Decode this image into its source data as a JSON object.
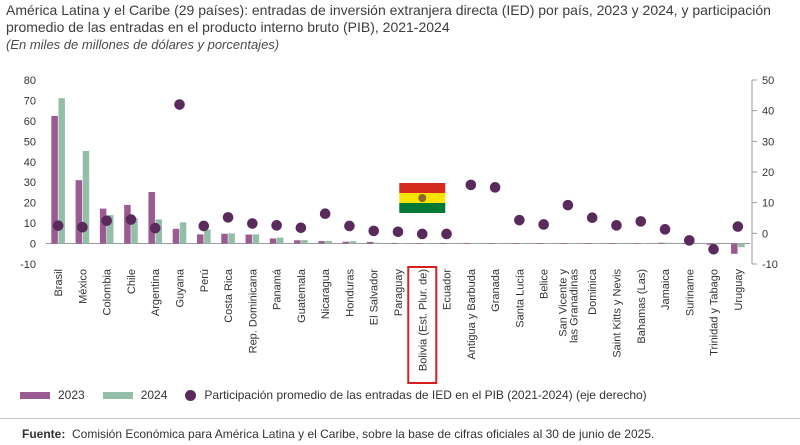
{
  "title": "América Latina y el Caribe (29 países): entradas de inversión extranjera directa (IED) por país, 2023 y 2024, y participación promedio de las entradas en el producto interno bruto (PIB), 2021-2024",
  "subtitle": "(En miles de millones de dólares y porcentajes)",
  "source_label": "Fuente:",
  "source_text": "Comisión Económica para América Latina y el Caribe, sobre la base de cifras oficiales al 30 de junio de 2025.",
  "highlight": {
    "category": "Bolivia (Est. Plur. de)",
    "flag_colors": [
      "#d52b1e",
      "#f9e300",
      "#007934"
    ]
  },
  "chart_data": {
    "type": "bar",
    "categories": [
      "Brasil",
      "México",
      "Colombia",
      "Chile",
      "Argentina",
      "Guyana",
      "Perú",
      "Costa Rica",
      "Rep. Dominicana",
      "Panamá",
      "Guatemala",
      "Nicaragua",
      "Honduras",
      "El Salvador",
      "Paraguay",
      "Bolivia (Est. Plur. de)",
      "Ecuador",
      "Antigua y Barbuda",
      "Granada",
      "Santa Lucía",
      "Belice",
      "San Vicente y las Granadinas",
      "Dominica",
      "Saint Kitts y Nevis",
      "Bahamas (Las)",
      "Jamaica",
      "Suriname",
      "Trinidad y Tabago",
      "Uruguay"
    ],
    "series": [
      {
        "name": "2023",
        "axis": "left",
        "color": "#9b5a92",
        "values": [
          62.4,
          31.0,
          17.1,
          18.9,
          25.2,
          7.2,
          4.5,
          4.8,
          4.4,
          2.5,
          1.6,
          1.2,
          0.9,
          0.8,
          0.3,
          0.1,
          0.3,
          0.3,
          0.2,
          0.2,
          0.1,
          0.1,
          0.1,
          0.1,
          0.2,
          0.4,
          0.1,
          -0.6,
          -5.0
        ]
      },
      {
        "name": "2024",
        "axis": "left",
        "color": "#93bfa8",
        "values": [
          71.1,
          45.3,
          13.9,
          12.4,
          11.8,
          10.4,
          6.8,
          5.0,
          4.5,
          2.9,
          1.7,
          1.3,
          1.2,
          0.4,
          0.2,
          0.2,
          0.3,
          0.3,
          0.2,
          0.2,
          0.1,
          0.1,
          0.1,
          0.1,
          0.2,
          0.4,
          0.2,
          -0.4,
          -1.8
        ]
      },
      {
        "name": "Participación promedio de las entradas de IED en el PIB (2021-2024) (eje derecho)",
        "axis": "right",
        "type": "scatter",
        "color": "#5a2a5d",
        "values": [
          2.5,
          2.0,
          4.1,
          4.5,
          1.7,
          42.0,
          2.4,
          5.2,
          3.2,
          2.6,
          1.8,
          6.4,
          2.4,
          0.8,
          0.5,
          -0.2,
          -0.2,
          15.8,
          15.0,
          4.3,
          2.9,
          9.2,
          5.1,
          2.6,
          3.9,
          1.3,
          -2.3,
          -5.2,
          2.2
        ]
      }
    ],
    "y_left": {
      "min": -10,
      "max": 80,
      "ticks": [
        -10,
        0,
        10,
        20,
        30,
        40,
        50,
        60,
        70,
        80
      ]
    },
    "y_right": {
      "min": -10,
      "max": 50,
      "ticks": [
        -10,
        0,
        10,
        20,
        30,
        40,
        50
      ]
    },
    "legend_placement": "bottom",
    "grid": false
  }
}
